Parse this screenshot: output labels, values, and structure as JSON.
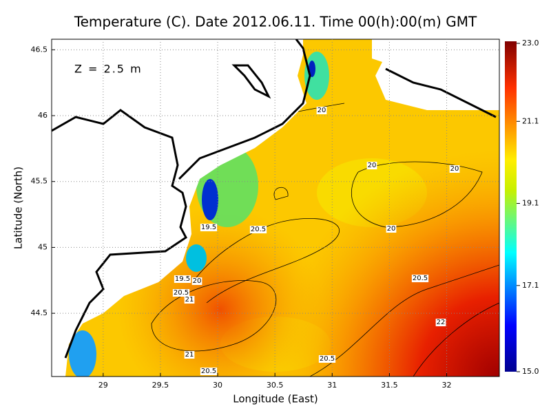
{
  "chart_data": {
    "type": "contour-map",
    "title": "Temperature (C). Date 2012.06.11. Time 00(h):00(m) GMT",
    "annotation": "Z = 2.5 m",
    "x_label": "Longitude (East)",
    "y_label": "Latitude (North)",
    "xlim": [
      28.55,
      32.46
    ],
    "ylim": [
      44.02,
      46.58
    ],
    "xticks": [
      29,
      29.5,
      30,
      30.5,
      31,
      31.5,
      32
    ],
    "yticks": [
      44.5,
      45,
      45.5,
      46,
      46.5
    ],
    "grid": true,
    "clim": [
      15,
      23
    ],
    "cticks": [
      {
        "value": 15,
        "label": "15.0"
      },
      {
        "value": 17.1,
        "label": "17.1"
      },
      {
        "value": 19.1,
        "label": "19.1"
      },
      {
        "value": 21.1,
        "label": "21.1"
      },
      {
        "value": 23,
        "label": "23.0"
      }
    ],
    "contour_labels": [
      20,
      20,
      20,
      20,
      19.5,
      19.5,
      20,
      20.5,
      20.5,
      20.5,
      20.5,
      20.5,
      21,
      21,
      22
    ]
  }
}
